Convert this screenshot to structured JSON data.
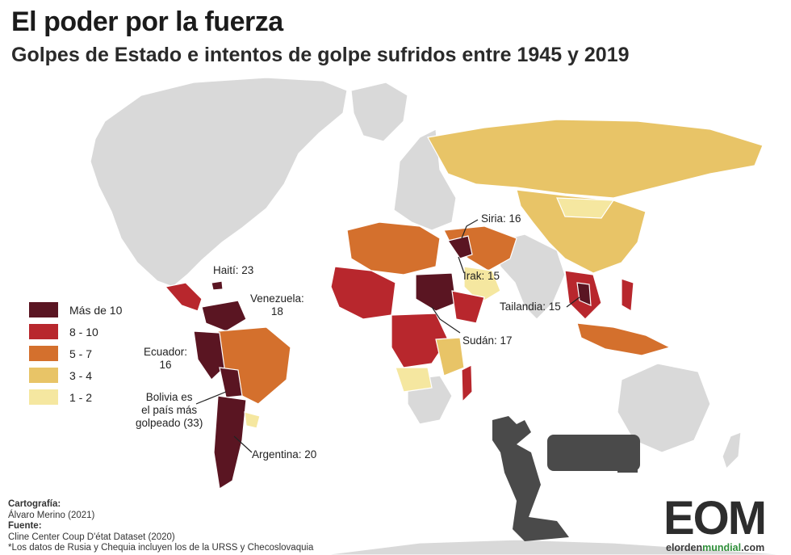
{
  "title": "El poder por la fuerza",
  "subtitle": "Golpes de Estado e intentos de golpe sufridos entre 1945 y 2019",
  "colors": {
    "ocean": "#ffffff",
    "no_data": "#d9d9d9",
    "border": "#ffffff",
    "more_than_10": "#5a1522",
    "8_10": "#b8272d",
    "5_7": "#d4702d",
    "3_4": "#e8c467",
    "1_2": "#f5e7a0",
    "chess_piece": "#4a4a4a",
    "logo_green": "#2f8f3a"
  },
  "legend": {
    "items": [
      {
        "label": "Más de 10",
        "color": "#5a1522"
      },
      {
        "label": "8 - 10",
        "color": "#b8272d"
      },
      {
        "label": "5 - 7",
        "color": "#d4702d"
      },
      {
        "label": "3 - 4",
        "color": "#e8c467"
      },
      {
        "label": "1 - 2",
        "color": "#f5e7a0"
      }
    ]
  },
  "annotations": {
    "haiti": "Haití: 23",
    "venezuela_line1": "Venezuela:",
    "venezuela_line2": "18",
    "ecuador_line1": "Ecuador:",
    "ecuador_line2": "16",
    "bolivia_line1": "Bolivia es",
    "bolivia_line2": "el país más",
    "bolivia_line3": "golpeado (33)",
    "argentina": "Argentina: 20",
    "siria": "Siria: 16",
    "irak": "Irak: 15",
    "sudan": "Sudán: 17",
    "tailandia": "Tailandia: 15"
  },
  "credits": {
    "cartografia_label": "Cartografía:",
    "cartografia_value": "Álvaro Merino (2021)",
    "fuente_label": "Fuente:",
    "fuente_value": "Cline Center Coup D'état Dataset (2020)",
    "note": "*Los datos de Rusia y Chequia incluyen los de la URSS y Checoslovaquia"
  },
  "logo": {
    "letters": "EOM",
    "url_part1": "elorden",
    "url_part2": "mundial",
    "url_part3": ".com"
  }
}
